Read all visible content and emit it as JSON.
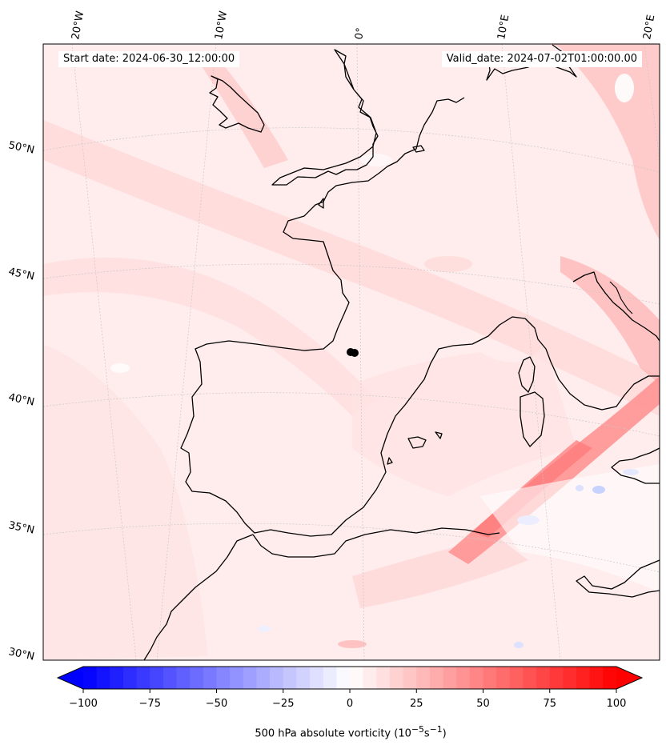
{
  "annotations": {
    "start_date": "Start date: 2024-06-30_12:00:00",
    "valid_date": "Valid_date: 2024-07-02T01:00:00.00"
  },
  "map": {
    "projection": "conic",
    "region": "Western Europe and North Africa",
    "coastline_color": "#000000",
    "graticule_color": "#c8c8c8",
    "marker": {
      "lon": 0.7,
      "lat": 41.6,
      "color": "#000000"
    },
    "longitude_labels": [
      {
        "value": -20,
        "label": "20°W"
      },
      {
        "value": -10,
        "label": "10°W"
      },
      {
        "value": 0,
        "label": "0°"
      },
      {
        "value": 10,
        "label": "10°E"
      },
      {
        "value": 20,
        "label": "20°E"
      }
    ],
    "latitude_labels": [
      {
        "value": 50,
        "label": "50°N"
      },
      {
        "value": 45,
        "label": "45°N"
      },
      {
        "value": 40,
        "label": "40°N"
      },
      {
        "value": 35,
        "label": "35°N"
      },
      {
        "value": 30,
        "label": "30°N"
      }
    ]
  },
  "colorbar": {
    "min": -100,
    "max": 100,
    "step": 5,
    "extend": "both",
    "ticks": [
      -100,
      -75,
      -50,
      -25,
      0,
      25,
      50,
      75,
      100
    ],
    "tick_labels": [
      "−100",
      "−75",
      "−50",
      "−25",
      "0",
      "25",
      "50",
      "75",
      "100"
    ],
    "colormap": "bwr",
    "label": "500 hPa absolute vorticity (10",
    "label_sup1": "−5",
    "label_mid": "s",
    "label_sup2": "−1",
    "label_end": ")"
  }
}
